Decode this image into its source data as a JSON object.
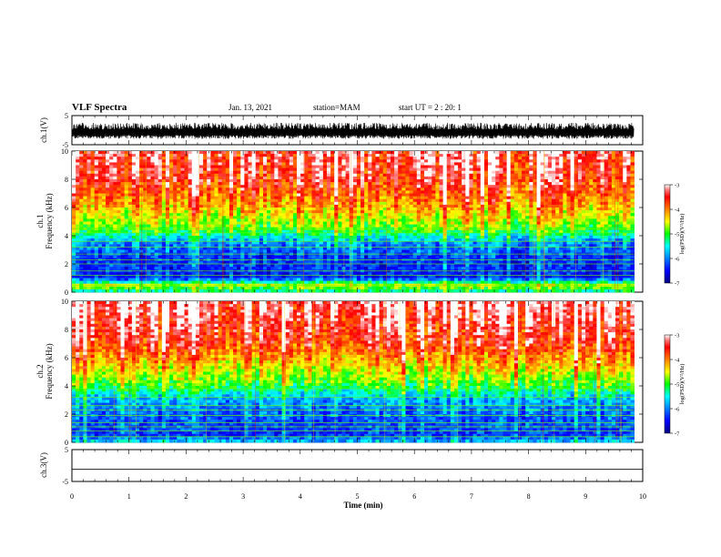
{
  "header": {
    "title": "VLF Spectra",
    "date": "Jan. 13, 2021",
    "station": "station=MAM",
    "start_ut": "start UT = 2 : 20: 1"
  },
  "chart_data": [
    {
      "type": "line",
      "panel": "ch1-waveform",
      "ylabel": "ch.1(V)",
      "ylim": [
        -5,
        5
      ],
      "yticks": [
        "5",
        "-5"
      ],
      "xlim": [
        0,
        10
      ],
      "description_values": {
        "baseline": -0.5,
        "amplitude_min": -3.0,
        "amplitude_max": 2.5
      }
    },
    {
      "type": "heatmap",
      "panel": "ch1-spectrogram",
      "ylabel": "ch.1\nFrequency (kHz)",
      "ylabel_lines": [
        "ch.1",
        "Frequency (kHz)"
      ],
      "ylim": [
        0,
        10
      ],
      "yticks": [
        "0",
        "2",
        "4",
        "6",
        "8",
        "10"
      ],
      "xlim": [
        0,
        9.85
      ],
      "colorbar": {
        "label": "log(PSD)(V²/Hz)",
        "range": [
          -7,
          -3
        ],
        "ticks": [
          "-3",
          "-4",
          "-5",
          "-6",
          "-7"
        ]
      },
      "profile_log_psd": [
        {
          "f": 0.0,
          "v": -5.4
        },
        {
          "f": 0.5,
          "v": -4.6
        },
        {
          "f": 1.0,
          "v": -6.4
        },
        {
          "f": 2.5,
          "v": -6.3
        },
        {
          "f": 3.5,
          "v": -5.9
        },
        {
          "f": 4.5,
          "v": -4.9
        },
        {
          "f": 6.0,
          "v": -4.2
        },
        {
          "f": 8.0,
          "v": -3.5
        },
        {
          "f": 10.0,
          "v": -3.3
        }
      ],
      "horizontal_lines_khz": [
        0.5,
        1.2,
        1.5,
        2.0,
        2.3,
        2.7,
        3.2,
        3.6,
        4.2,
        4.5
      ]
    },
    {
      "type": "heatmap",
      "panel": "ch2-spectrogram",
      "ylabel_lines": [
        "ch.2",
        "Frequency (kHz)"
      ],
      "ylim": [
        0,
        10
      ],
      "yticks": [
        "0",
        "2",
        "4",
        "6",
        "8",
        "10"
      ],
      "xlim": [
        0,
        9.85
      ],
      "colorbar": {
        "label": "log(PSD)(V²/Hz)",
        "range": [
          -7,
          -3
        ],
        "ticks": [
          "-3",
          "-4",
          "-5",
          "-6",
          "-7"
        ]
      },
      "profile_log_psd": [
        {
          "f": 0.0,
          "v": -5.6
        },
        {
          "f": 0.5,
          "v": -6.3
        },
        {
          "f": 1.5,
          "v": -6.2
        },
        {
          "f": 3.0,
          "v": -5.8
        },
        {
          "f": 4.0,
          "v": -5.0
        },
        {
          "f": 5.5,
          "v": -4.3
        },
        {
          "f": 7.0,
          "v": -3.6
        },
        {
          "f": 10.0,
          "v": -3.1
        }
      ],
      "horizontal_lines_khz": [
        0.4,
        0.8,
        1.1,
        1.4,
        1.9,
        2.3,
        2.6,
        3.2,
        3.8
      ]
    },
    {
      "type": "line",
      "panel": "ch3-waveform",
      "ylabel": "ch.3(V)",
      "ylim": [
        -5,
        5
      ],
      "yticks": [
        "5",
        "-5"
      ],
      "values_constant": -1.2,
      "xlabel": "Time (min)",
      "xlim": [
        0,
        10
      ],
      "xticks": [
        "0",
        "1",
        "2",
        "3",
        "4",
        "5",
        "6",
        "7",
        "8",
        "9",
        "10"
      ]
    }
  ]
}
